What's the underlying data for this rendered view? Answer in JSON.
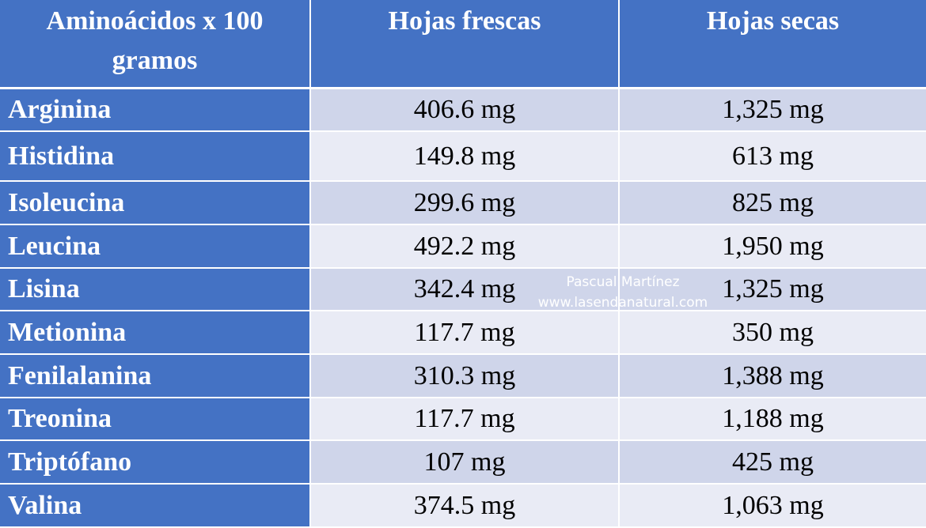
{
  "table": {
    "header": [
      "Aminoácidos x 100 gramos",
      "Hojas frescas",
      "Hojas secas"
    ],
    "rows": [
      [
        "Arginina",
        "406.6 mg",
        "1,325 mg"
      ],
      [
        "Histidina",
        "149.8 mg",
        "613 mg"
      ],
      [
        "Isoleucina",
        "299.6 mg",
        "825 mg"
      ],
      [
        "Leucina",
        "492.2 mg",
        "1,950 mg"
      ],
      [
        "Lisina",
        "342.4 mg",
        "1,325 mg"
      ],
      [
        "Metionina",
        "117.7 mg",
        "350 mg"
      ],
      [
        "Fenilalanina",
        "310.3 mg",
        "1,388 mg"
      ],
      [
        "Treonina",
        "117.7 mg",
        "1,188 mg"
      ],
      [
        "Triptófano",
        "107 mg",
        "425 mg"
      ],
      [
        "Valina",
        "374.5 mg",
        "1,063 mg"
      ]
    ]
  },
  "watermark": [
    "Pascual Martínez",
    "www.lasendanatural.com"
  ]
}
